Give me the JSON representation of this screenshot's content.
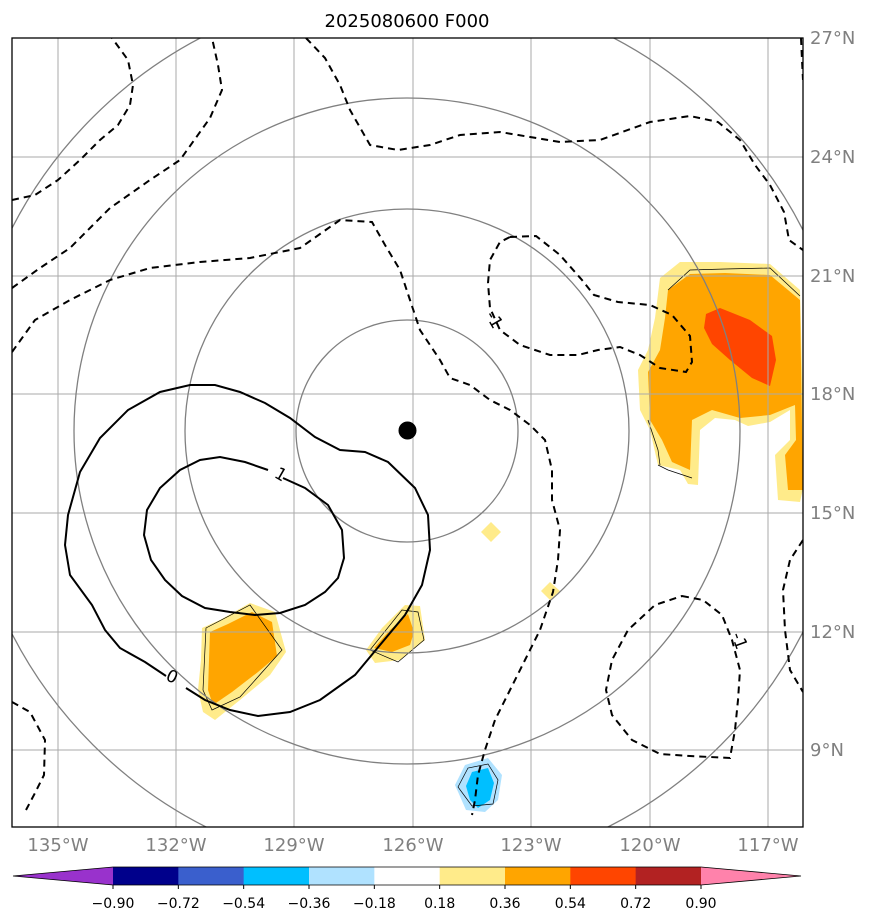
{
  "title": "2025080600 F000",
  "map": {
    "lon_range": [
      -136.1,
      -116.1
    ],
    "lat_range": [
      7.1,
      27.0
    ],
    "lon_ticks": [
      "135°W",
      "132°W",
      "129°W",
      "126°W",
      "123°W",
      "120°W",
      "117°W"
    ],
    "lat_ticks": [
      "27°N",
      "24°N",
      "21°N",
      "18°N",
      "15°N",
      "12°N",
      "9°N"
    ],
    "center_marker": {
      "lon": -126.1,
      "lat": 17.1
    },
    "range_rings_deg": [
      2.8,
      5.6,
      8.4,
      11.2
    ],
    "contour_labels": [
      {
        "text": "1",
        "lon": -129.3,
        "lat": 16.0,
        "rot": 30
      },
      {
        "text": "0",
        "lon": -132.05,
        "lat": 10.9,
        "rot": 25
      },
      {
        "text": "-1",
        "lon": -123.9,
        "lat": 19.9,
        "rot": 60
      },
      {
        "text": "-1",
        "lon": -117.7,
        "lat": 11.8,
        "rot": 70
      }
    ]
  },
  "colorbar": {
    "levels": [
      "−0.90",
      "−0.72",
      "−0.54",
      "−0.36",
      "−0.18",
      "0.18",
      "0.36",
      "0.54",
      "0.72",
      "0.90"
    ],
    "colors": [
      "#9932cc",
      "#00008b",
      "#3a5fcd",
      "#00bfff",
      "#b0e2ff",
      "#ffffff",
      "#ffeb8a",
      "#ffa500",
      "#ff4500",
      "#b22222",
      "#ff82ab"
    ]
  },
  "colors": {
    "grid": "#aaaaaa",
    "ring": "#808080",
    "axis_label": "#808080",
    "contour": "#000000",
    "fill_light_yellow": "#ffeb8a",
    "fill_orange": "#ffa500",
    "fill_red_orange": "#ff4500",
    "fill_deep_sky": "#00bfff",
    "fill_light_blue": "#b0e2ff"
  }
}
